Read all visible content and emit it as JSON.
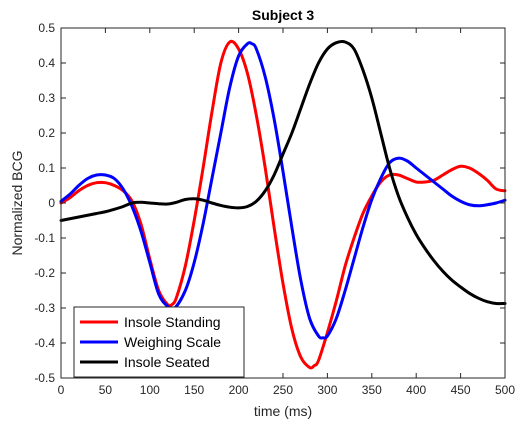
{
  "chart_data": {
    "type": "line",
    "title": "Subject 3",
    "xlabel": "time (ms)",
    "ylabel": "Normalized BCG",
    "xlim": [
      0,
      500
    ],
    "ylim": [
      -0.5,
      0.5
    ],
    "xticks": [
      0,
      50,
      100,
      150,
      200,
      250,
      300,
      350,
      400,
      450,
      500
    ],
    "yticks": [
      -0.5,
      -0.4,
      -0.3,
      -0.2,
      -0.1,
      0,
      0.1,
      0.2,
      0.3,
      0.4,
      0.5
    ],
    "xtick_labels": [
      "0",
      "50",
      "100",
      "150",
      "200",
      "250",
      "300",
      "350",
      "400",
      "450",
      "500"
    ],
    "ytick_labels": [
      "-0.5",
      "-0.4",
      "-0.3",
      "-0.2",
      "-0.1",
      "0",
      "0.1",
      "0.2",
      "0.3",
      "0.4",
      "0.5"
    ],
    "grid": false,
    "legend_position": "bottom-left",
    "series": [
      {
        "name": "Insole Standing",
        "color": "#ff0000",
        "x": [
          0,
          10,
          20,
          30,
          40,
          50,
          60,
          70,
          80,
          90,
          100,
          110,
          120,
          125,
          130,
          140,
          150,
          160,
          170,
          180,
          190,
          200,
          210,
          220,
          230,
          240,
          250,
          260,
          270,
          280,
          285,
          290,
          300,
          310,
          320,
          330,
          340,
          350,
          360,
          370,
          380,
          390,
          400,
          410,
          420,
          430,
          440,
          450,
          460,
          470,
          480,
          490,
          500
        ],
        "y": [
          0.0,
          0.015,
          0.035,
          0.05,
          0.058,
          0.058,
          0.05,
          0.035,
          0.005,
          -0.06,
          -0.16,
          -0.25,
          -0.29,
          -0.29,
          -0.27,
          -0.18,
          -0.05,
          0.1,
          0.26,
          0.4,
          0.46,
          0.44,
          0.37,
          0.25,
          0.1,
          -0.07,
          -0.23,
          -0.36,
          -0.44,
          -0.47,
          -0.465,
          -0.45,
          -0.37,
          -0.28,
          -0.18,
          -0.1,
          -0.03,
          0.02,
          0.06,
          0.08,
          0.08,
          0.07,
          0.06,
          0.06,
          0.065,
          0.08,
          0.095,
          0.105,
          0.1,
          0.085,
          0.065,
          0.04,
          0.035
        ]
      },
      {
        "name": "Weighing Scale",
        "color": "#0000ff",
        "x": [
          0,
          10,
          20,
          30,
          40,
          50,
          60,
          70,
          80,
          90,
          100,
          110,
          120,
          128,
          140,
          150,
          160,
          170,
          180,
          190,
          200,
          210,
          215,
          220,
          230,
          240,
          250,
          260,
          270,
          280,
          290,
          295,
          300,
          310,
          320,
          330,
          340,
          350,
          360,
          370,
          380,
          390,
          400,
          410,
          420,
          430,
          440,
          450,
          460,
          470,
          480,
          490,
          500
        ],
        "y": [
          0.005,
          0.025,
          0.05,
          0.07,
          0.08,
          0.08,
          0.07,
          0.04,
          -0.01,
          -0.08,
          -0.17,
          -0.26,
          -0.295,
          -0.3,
          -0.25,
          -0.17,
          -0.06,
          0.07,
          0.2,
          0.33,
          0.42,
          0.455,
          0.455,
          0.44,
          0.36,
          0.24,
          0.09,
          -0.07,
          -0.22,
          -0.33,
          -0.38,
          -0.385,
          -0.38,
          -0.33,
          -0.25,
          -0.16,
          -0.07,
          0.01,
          0.07,
          0.115,
          0.128,
          0.12,
          0.1,
          0.08,
          0.06,
          0.04,
          0.02,
          0.005,
          -0.005,
          -0.008,
          -0.005,
          0.0,
          0.008
        ]
      },
      {
        "name": "Insole Seated",
        "color": "#000000",
        "x": [
          0,
          10,
          20,
          30,
          40,
          50,
          60,
          70,
          80,
          90,
          100,
          110,
          120,
          130,
          140,
          150,
          160,
          170,
          180,
          190,
          200,
          210,
          220,
          230,
          240,
          250,
          260,
          270,
          280,
          290,
          300,
          310,
          320,
          330,
          340,
          350,
          360,
          370,
          380,
          390,
          400,
          410,
          420,
          430,
          440,
          450,
          460,
          470,
          480,
          490,
          500
        ],
        "y": [
          -0.05,
          -0.045,
          -0.04,
          -0.035,
          -0.03,
          -0.025,
          -0.018,
          -0.01,
          0.0,
          0.002,
          0.0,
          -0.002,
          -0.003,
          0.002,
          0.01,
          0.012,
          0.008,
          0.0,
          -0.007,
          -0.012,
          -0.014,
          -0.01,
          0.005,
          0.035,
          0.08,
          0.14,
          0.2,
          0.27,
          0.34,
          0.4,
          0.44,
          0.458,
          0.46,
          0.44,
          0.38,
          0.3,
          0.2,
          0.1,
          0.02,
          -0.04,
          -0.09,
          -0.13,
          -0.165,
          -0.195,
          -0.22,
          -0.24,
          -0.258,
          -0.272,
          -0.282,
          -0.287,
          -0.287
        ]
      }
    ]
  }
}
